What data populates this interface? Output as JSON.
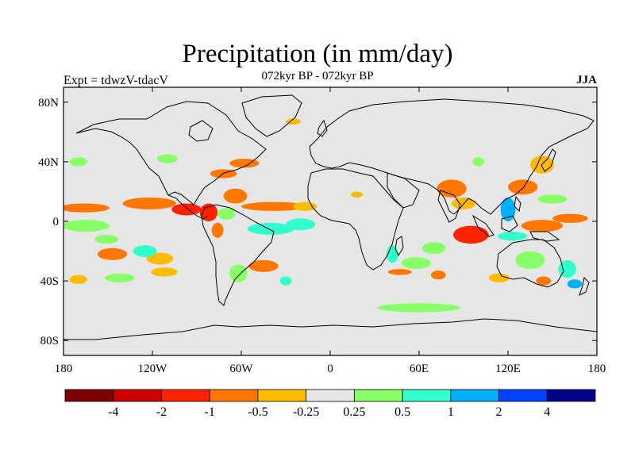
{
  "header": {
    "title": "Precipitation (in mm/day)",
    "subtitle": "072kyr BP - 072kyr BP",
    "left_label": "Expt = tdwzV-tdacV",
    "right_label": "JJA"
  },
  "colors": {
    "land_ocean_background": "#e6e6e6",
    "coastline": "#000000",
    "frame": "#000000"
  },
  "chart_data": {
    "type": "heatmap",
    "title": "Precipitation (in mm/day)",
    "subtitle": "072kyr BP - 072kyr BP",
    "projection": "cylindrical equidistant",
    "season": "JJA",
    "experiment": "tdwzV-tdacV",
    "xlim": [
      -180,
      180
    ],
    "ylim": [
      -90,
      90
    ],
    "x_ticks": [
      {
        "value": -180,
        "label": "180"
      },
      {
        "value": -120,
        "label": "120W"
      },
      {
        "value": -60,
        "label": "60W"
      },
      {
        "value": 0,
        "label": "0"
      },
      {
        "value": 60,
        "label": "60E"
      },
      {
        "value": 120,
        "label": "120E"
      },
      {
        "value": 180,
        "label": "180"
      }
    ],
    "y_ticks": [
      {
        "value": 80,
        "label": "80N"
      },
      {
        "value": 40,
        "label": "40N"
      },
      {
        "value": 0,
        "label": "0"
      },
      {
        "value": -40,
        "label": "40S"
      },
      {
        "value": -80,
        "label": "80S"
      }
    ],
    "colorbar": {
      "colors": [
        "#7f0000",
        "#cc0000",
        "#ff2200",
        "#ff7700",
        "#ffbb00",
        "#e6e6e6",
        "#88ff66",
        "#33ffcc",
        "#00b0ff",
        "#0044ff",
        "#000088"
      ],
      "labels": [
        "-4",
        "-2",
        "-1",
        "-0.5",
        "-0.25",
        "0.25",
        "0.5",
        "1",
        "2",
        "4"
      ]
    },
    "anomaly_regions": [
      {
        "lon": -166,
        "lat": 9,
        "rx": 17,
        "ry": 3,
        "cls": -2
      },
      {
        "lon": -122,
        "lat": 12,
        "rx": 18,
        "ry": 4,
        "cls": -2
      },
      {
        "lon": -97,
        "lat": 8,
        "rx": 10,
        "ry": 4,
        "cls": -3
      },
      {
        "lon": -82,
        "lat": 6,
        "rx": 6,
        "ry": 6,
        "cls": -3
      },
      {
        "lon": -64,
        "lat": 17,
        "rx": 8,
        "ry": 5,
        "cls": -2
      },
      {
        "lon": -38,
        "lat": 10,
        "rx": 22,
        "ry": 3,
        "cls": -2
      },
      {
        "lon": -72,
        "lat": 32,
        "rx": 9,
        "ry": 3,
        "cls": -2
      },
      {
        "lon": -58,
        "lat": 39,
        "rx": 10,
        "ry": 3,
        "cls": -2
      },
      {
        "lon": -45,
        "lat": -30,
        "rx": 10,
        "ry": 4,
        "cls": -2
      },
      {
        "lon": -147,
        "lat": -22,
        "rx": 10,
        "ry": 4,
        "cls": -2
      },
      {
        "lon": -115,
        "lat": -25,
        "rx": 9,
        "ry": 4,
        "cls": -1
      },
      {
        "lon": -112,
        "lat": -34,
        "rx": 9,
        "ry": 3,
        "cls": -1
      },
      {
        "lon": -76,
        "lat": -6,
        "rx": 4,
        "ry": 5,
        "cls": -2
      },
      {
        "lon": -17,
        "lat": 10,
        "rx": 8,
        "ry": 3,
        "cls": -1
      },
      {
        "lon": 47,
        "lat": -34,
        "rx": 8,
        "ry": 2,
        "cls": -2
      },
      {
        "lon": 73,
        "lat": -36,
        "rx": 5,
        "ry": 3,
        "cls": -2
      },
      {
        "lon": 82,
        "lat": 22,
        "rx": 10,
        "ry": 6,
        "cls": -2
      },
      {
        "lon": 95,
        "lat": -9,
        "rx": 12,
        "ry": 6,
        "cls": -3
      },
      {
        "lon": 90,
        "lat": 12,
        "rx": 8,
        "ry": 4,
        "cls": -1
      },
      {
        "lon": 130,
        "lat": 23,
        "rx": 10,
        "ry": 5,
        "cls": -2
      },
      {
        "lon": 143,
        "lat": 38,
        "rx": 8,
        "ry": 6,
        "cls": -1
      },
      {
        "lon": 143,
        "lat": -3,
        "rx": 14,
        "ry": 4,
        "cls": -2
      },
      {
        "lon": 162,
        "lat": 2,
        "rx": 12,
        "ry": 3,
        "cls": -2
      },
      {
        "lon": 144,
        "lat": -40,
        "rx": 5,
        "ry": 3,
        "cls": -2
      },
      {
        "lon": 114,
        "lat": -38,
        "rx": 7,
        "ry": 3,
        "cls": -1
      },
      {
        "lon": -25,
        "lat": 67,
        "rx": 5,
        "ry": 2,
        "cls": -1
      },
      {
        "lon": 18,
        "lat": 18,
        "rx": 4,
        "ry": 2,
        "cls": -1
      },
      {
        "lon": -170,
        "lat": -39,
        "rx": 6,
        "ry": 3,
        "cls": -1
      },
      {
        "lon": -151,
        "lat": -12,
        "rx": 8,
        "ry": 3,
        "cls": 1
      },
      {
        "lon": -125,
        "lat": -20,
        "rx": 8,
        "ry": 4,
        "cls": 2
      },
      {
        "lon": -40,
        "lat": -5,
        "rx": 16,
        "ry": 4,
        "cls": 2
      },
      {
        "lon": -20,
        "lat": -2,
        "rx": 10,
        "ry": 4,
        "cls": 2
      },
      {
        "lon": -70,
        "lat": 5,
        "rx": 6,
        "ry": 4,
        "cls": 1
      },
      {
        "lon": -62,
        "lat": -35,
        "rx": 6,
        "ry": 6,
        "cls": 1
      },
      {
        "lon": -142,
        "lat": -38,
        "rx": 10,
        "ry": 3,
        "cls": 1
      },
      {
        "lon": -165,
        "lat": -3,
        "rx": 16,
        "ry": 4,
        "cls": 1
      },
      {
        "lon": -170,
        "lat": 40,
        "rx": 6,
        "ry": 3,
        "cls": 1
      },
      {
        "lon": -110,
        "lat": 42,
        "rx": 7,
        "ry": 3,
        "cls": 1
      },
      {
        "lon": 42,
        "lat": -22,
        "rx": 4,
        "ry": 6,
        "cls": 2
      },
      {
        "lon": 58,
        "lat": -28,
        "rx": 10,
        "ry": 4,
        "cls": 1
      },
      {
        "lon": 70,
        "lat": -18,
        "rx": 8,
        "ry": 4,
        "cls": 1
      },
      {
        "lon": 135,
        "lat": -26,
        "rx": 10,
        "ry": 6,
        "cls": 1
      },
      {
        "lon": 123,
        "lat": -10,
        "rx": 10,
        "ry": 3,
        "cls": 2
      },
      {
        "lon": 120,
        "lat": 8,
        "rx": 5,
        "ry": 8,
        "cls": 3
      },
      {
        "lon": 160,
        "lat": -32,
        "rx": 6,
        "ry": 6,
        "cls": 2
      },
      {
        "lon": 165,
        "lat": -42,
        "rx": 5,
        "ry": 3,
        "cls": 3
      },
      {
        "lon": 60,
        "lat": -58,
        "rx": 28,
        "ry": 3,
        "cls": 1
      },
      {
        "lon": -30,
        "lat": -40,
        "rx": 4,
        "ry": 3,
        "cls": 2
      },
      {
        "lon": 150,
        "lat": 15,
        "rx": 10,
        "ry": 3,
        "cls": 1
      },
      {
        "lon": 100,
        "lat": 40,
        "rx": 4,
        "ry": 3,
        "cls": 1
      }
    ]
  }
}
